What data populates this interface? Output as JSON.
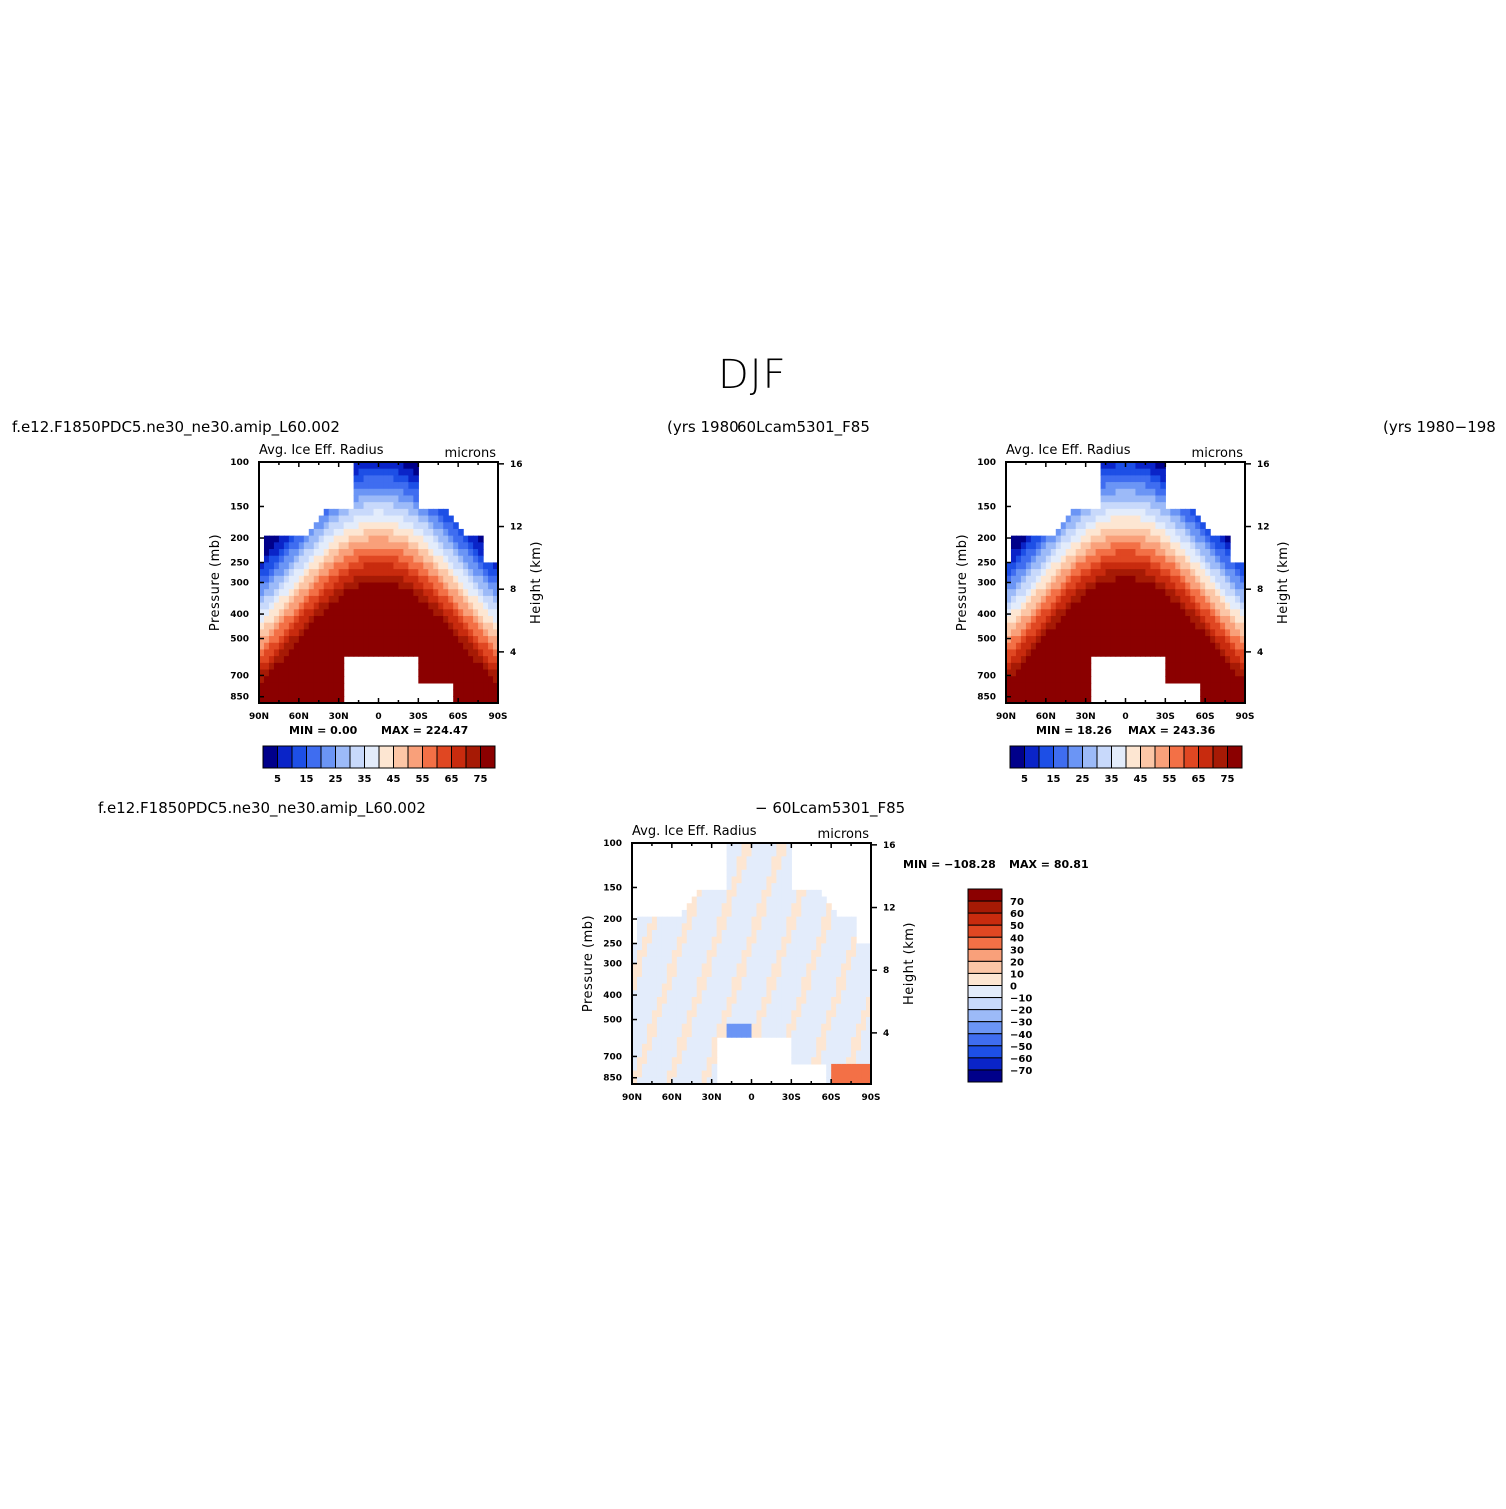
{
  "figure": {
    "title": "DJF",
    "case_left": "f.e12.F1850PDC5.ne30_ne30.amip_L60.002",
    "years_left": "(yrs 1980",
    "case_right": "60Lcam5301_F85",
    "years_right": "(yrs 1980−198",
    "case_diff_left": "f.e12.F1850PDC5.ne30_ne30.amip_L60.002",
    "case_diff_right": "− 60Lcam5301_F85"
  },
  "colors": {
    "abs_levels": [
      "#00008a",
      "#0a24c8",
      "#1d4fe6",
      "#3f6df0",
      "#6b95f5",
      "#9cbaf8",
      "#c8d9fb",
      "#e3ecfb",
      "#fde6d2",
      "#fcc6a6",
      "#f9a07a",
      "#f37046",
      "#e04722",
      "#c82b0e",
      "#a61a05",
      "#8b0000"
    ],
    "diff_levels": [
      "#00008a",
      "#0a24c8",
      "#1d4fe6",
      "#3f6df0",
      "#6b95f5",
      "#9cbaf8",
      "#c8d9fb",
      "#e3ecfb",
      "#fde6d2",
      "#fcc6a6",
      "#f9a07a",
      "#f37046",
      "#e04722",
      "#c82b0e",
      "#a61a05",
      "#8b0000"
    ]
  },
  "chart_data": [
    {
      "type": "heatmap",
      "panel": "left",
      "title": "Avg. Ice Eff. Radius",
      "units": "microns",
      "ylabel": "Pressure (mb)",
      "ylabel_right": "Height (km)",
      "x_ticks": [
        "90N",
        "60N",
        "30N",
        "0",
        "30S",
        "60S",
        "90S"
      ],
      "y_ticks": [
        "100",
        "150",
        "200",
        "250",
        "300",
        "400",
        "500",
        "700",
        "850"
      ],
      "y_ticks_right": [
        "16",
        "12",
        "8",
        "4"
      ],
      "stats": {
        "min_label": "MIN =",
        "min": "0.00",
        "max_label": "MAX =",
        "max": "224.47"
      },
      "colorbar_labels": [
        "5",
        "15",
        "25",
        "35",
        "45",
        "55",
        "65",
        "75"
      ]
    },
    {
      "type": "heatmap",
      "panel": "right",
      "title": "Avg. Ice Eff. Radius",
      "units": "microns",
      "ylabel": "Pressure (mb)",
      "ylabel_right": "Height (km)",
      "x_ticks": [
        "90N",
        "60N",
        "30N",
        "0",
        "30S",
        "60S",
        "90S"
      ],
      "y_ticks": [
        "100",
        "150",
        "200",
        "250",
        "300",
        "400",
        "500",
        "700",
        "850"
      ],
      "y_ticks_right": [
        "16",
        "12",
        "8",
        "4"
      ],
      "stats": {
        "min_label": "MIN =",
        "min": "18.26",
        "max_label": "MAX =",
        "max": "243.36"
      },
      "colorbar_labels": [
        "5",
        "15",
        "25",
        "35",
        "45",
        "55",
        "65",
        "75"
      ]
    },
    {
      "type": "heatmap",
      "panel": "difference",
      "title": "Avg. Ice Eff. Radius",
      "units": "microns",
      "ylabel": "Pressure (mb)",
      "ylabel_right": "Height (km)",
      "x_ticks": [
        "90N",
        "60N",
        "30N",
        "0",
        "30S",
        "60S",
        "90S"
      ],
      "y_ticks": [
        "100",
        "150",
        "200",
        "250",
        "300",
        "400",
        "500",
        "700",
        "850"
      ],
      "y_ticks_right": [
        "16",
        "12",
        "8",
        "4"
      ],
      "stats": {
        "min_label": "MIN =",
        "min": "−108.28",
        "max_label": "MAX =",
        "max": "80.81"
      },
      "colorbar_labels": [
        "70",
        "60",
        "50",
        "40",
        "30",
        "20",
        "10",
        "0",
        "−10",
        "−20",
        "−30",
        "−40",
        "−50",
        "−60",
        "−70"
      ]
    }
  ]
}
